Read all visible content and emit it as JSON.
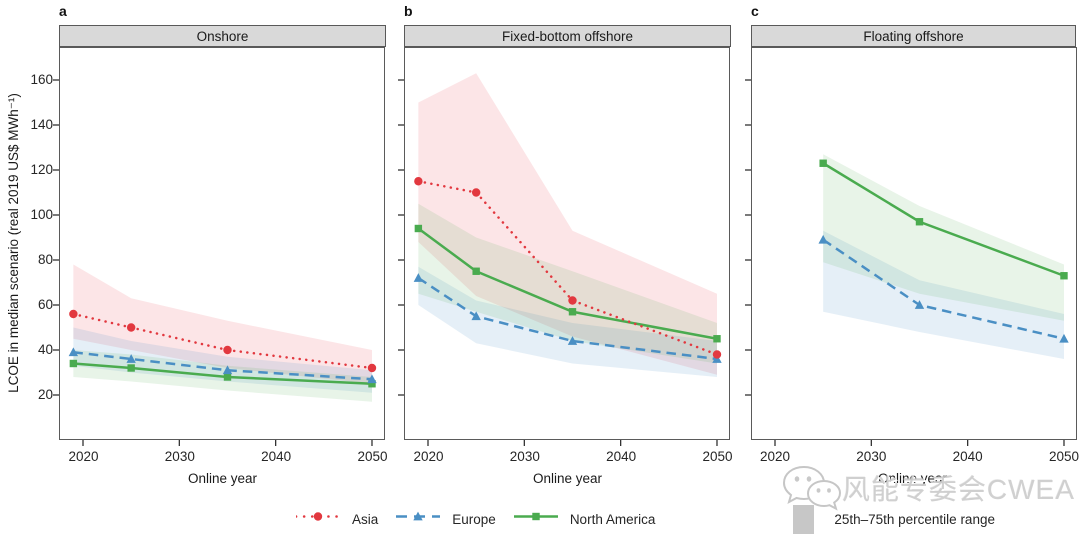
{
  "figure": {
    "panel_letters": [
      "a",
      "b",
      "c"
    ],
    "watermark": {
      "text": "风能专委会CWEA",
      "icon": "wechat-icon"
    }
  },
  "chart_data": {
    "type": "line",
    "title": "",
    "xlabel": "Online year",
    "ylabel": "LCOE in median scenario (real 2019 US$ MWh⁻¹)",
    "ylim": [
      0,
      174
    ],
    "xlim": [
      2017.5,
      2051.5
    ],
    "yticks": [
      20,
      40,
      60,
      80,
      100,
      120,
      140,
      160
    ],
    "xticks": [
      2020,
      2030,
      2040,
      2050
    ],
    "grid": false,
    "legend_position": "bottom",
    "band_meaning": "25th–75th percentile range",
    "panels": [
      {
        "key": "a",
        "title": "Onshore",
        "series": [
          {
            "name": "Asia",
            "x": [
              2019,
              2025,
              2035,
              2050
            ],
            "y": [
              56,
              50,
              40,
              32
            ],
            "band_low": [
              45,
              40,
              32,
              25
            ],
            "band_high": [
              78,
              63,
              53,
              40
            ]
          },
          {
            "name": "Europe",
            "x": [
              2019,
              2025,
              2035,
              2050
            ],
            "y": [
              39,
              36,
              31,
              27
            ],
            "band_low": [
              33,
              30,
              26,
              21
            ],
            "band_high": [
              50,
              44,
              37,
              31
            ]
          },
          {
            "name": "North America",
            "x": [
              2019,
              2025,
              2035,
              2050
            ],
            "y": [
              34,
              32,
              28,
              25
            ],
            "band_low": [
              28,
              26,
              22,
              17
            ],
            "band_high": [
              40,
              38,
              33,
              28
            ]
          }
        ]
      },
      {
        "key": "b",
        "title": "Fixed-bottom offshore",
        "series": [
          {
            "name": "Asia",
            "x": [
              2019,
              2025,
              2035,
              2050
            ],
            "y": [
              115,
              110,
              62,
              38
            ],
            "band_low": [
              88,
              64,
              46,
              29
            ],
            "band_high": [
              150,
              163,
              93,
              65
            ]
          },
          {
            "name": "Europe",
            "x": [
              2019,
              2025,
              2035,
              2050
            ],
            "y": [
              72,
              55,
              44,
              36
            ],
            "band_low": [
              60,
              43,
              34,
              28
            ],
            "band_high": [
              77,
              62,
              52,
              44
            ]
          },
          {
            "name": "North America",
            "x": [
              2019,
              2025,
              2035,
              2050
            ],
            "y": [
              94,
              75,
              57,
              45
            ],
            "band_low": [
              65,
              57,
              44,
              34
            ],
            "band_high": [
              105,
              90,
              75,
              52
            ]
          }
        ]
      },
      {
        "key": "c",
        "title": "Floating offshore",
        "series": [
          {
            "name": "Europe",
            "x": [
              2025,
              2035,
              2050
            ],
            "y": [
              89,
              60,
              45
            ],
            "band_low": [
              57,
              48,
              36
            ],
            "band_high": [
              93,
              71,
              56
            ]
          },
          {
            "name": "North America",
            "x": [
              2025,
              2035,
              2050
            ],
            "y": [
              123,
              97,
              73
            ],
            "band_low": [
              79,
              65,
              53
            ],
            "band_high": [
              127,
              104,
              78
            ]
          }
        ]
      }
    ],
    "legend": [
      {
        "label": "Asia",
        "color": "#e2383f",
        "band_color": "rgba(231,57,66,0.13)",
        "marker": "circle",
        "line": "dotted"
      },
      {
        "label": "Europe",
        "color": "#4a8fc4",
        "band_color": "rgba(74,143,196,0.14)",
        "marker": "triangle",
        "line": "dashed"
      },
      {
        "label": "North America",
        "color": "#4aab4f",
        "band_color": "rgba(74,171,79,0.13)",
        "marker": "square",
        "line": "solid"
      },
      {
        "label": "25th–75th percentile range",
        "color": "#c7c7c7",
        "marker": "rect",
        "line": "none"
      }
    ]
  }
}
